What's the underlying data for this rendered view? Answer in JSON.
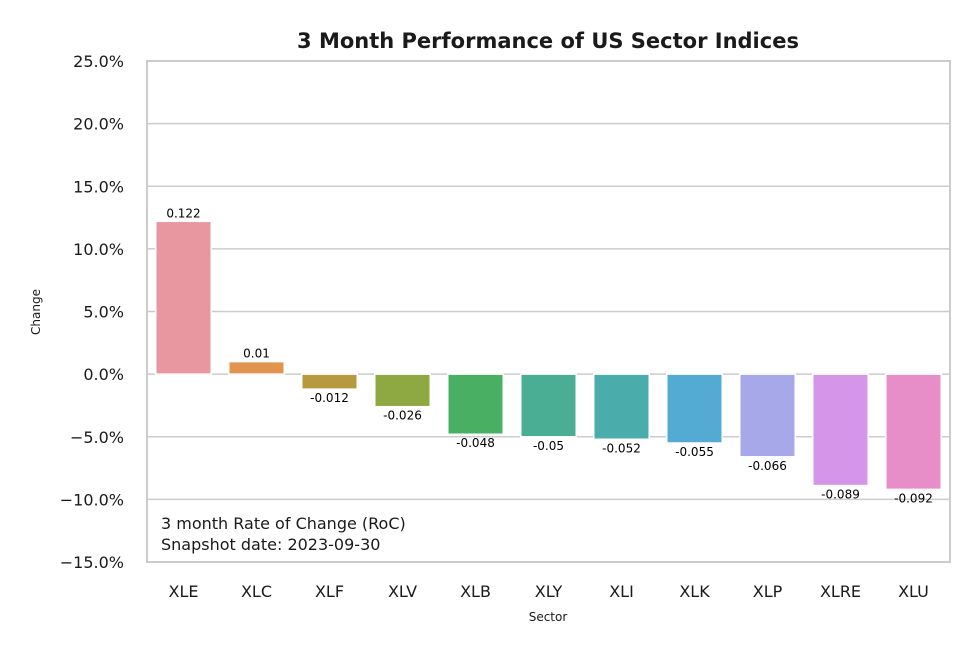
{
  "chart_data": {
    "type": "bar",
    "title": "3 Month Performance of US Sector Indices",
    "xlabel": "Sector",
    "ylabel": "Change",
    "ylim": [
      -0.15,
      0.25
    ],
    "yticks": [
      0.25,
      0.2,
      0.15,
      0.1,
      0.05,
      0.0,
      -0.05,
      -0.1,
      -0.15
    ],
    "ytick_labels": [
      "25.0%",
      "20.0%",
      "15.0%",
      "10.0%",
      "5.0%",
      "0.0%",
      "−5.0%",
      "−10.0%",
      "−15.0%"
    ],
    "grid": true,
    "categories": [
      "XLE",
      "XLC",
      "XLF",
      "XLV",
      "XLB",
      "XLY",
      "XLI",
      "XLK",
      "XLP",
      "XLRE",
      "XLU"
    ],
    "values": [
      0.122,
      0.01,
      -0.012,
      -0.026,
      -0.048,
      -0.05,
      -0.052,
      -0.055,
      -0.066,
      -0.089,
      -0.092
    ],
    "value_labels": [
      "0.122",
      "0.01",
      "-0.012",
      "-0.026",
      "-0.048",
      "-0.05",
      "-0.052",
      "-0.055",
      "-0.066",
      "-0.089",
      "-0.092"
    ],
    "colors": [
      "#e8969f",
      "#e0944f",
      "#b89a3e",
      "#8ea842",
      "#49b063",
      "#49ae94",
      "#4bacac",
      "#53abd4",
      "#a6a8ea",
      "#d595e9",
      "#e78ec8"
    ],
    "annotation": [
      "3 month Rate of Change (RoC)",
      "Snapshot date: 2023-09-30"
    ]
  }
}
